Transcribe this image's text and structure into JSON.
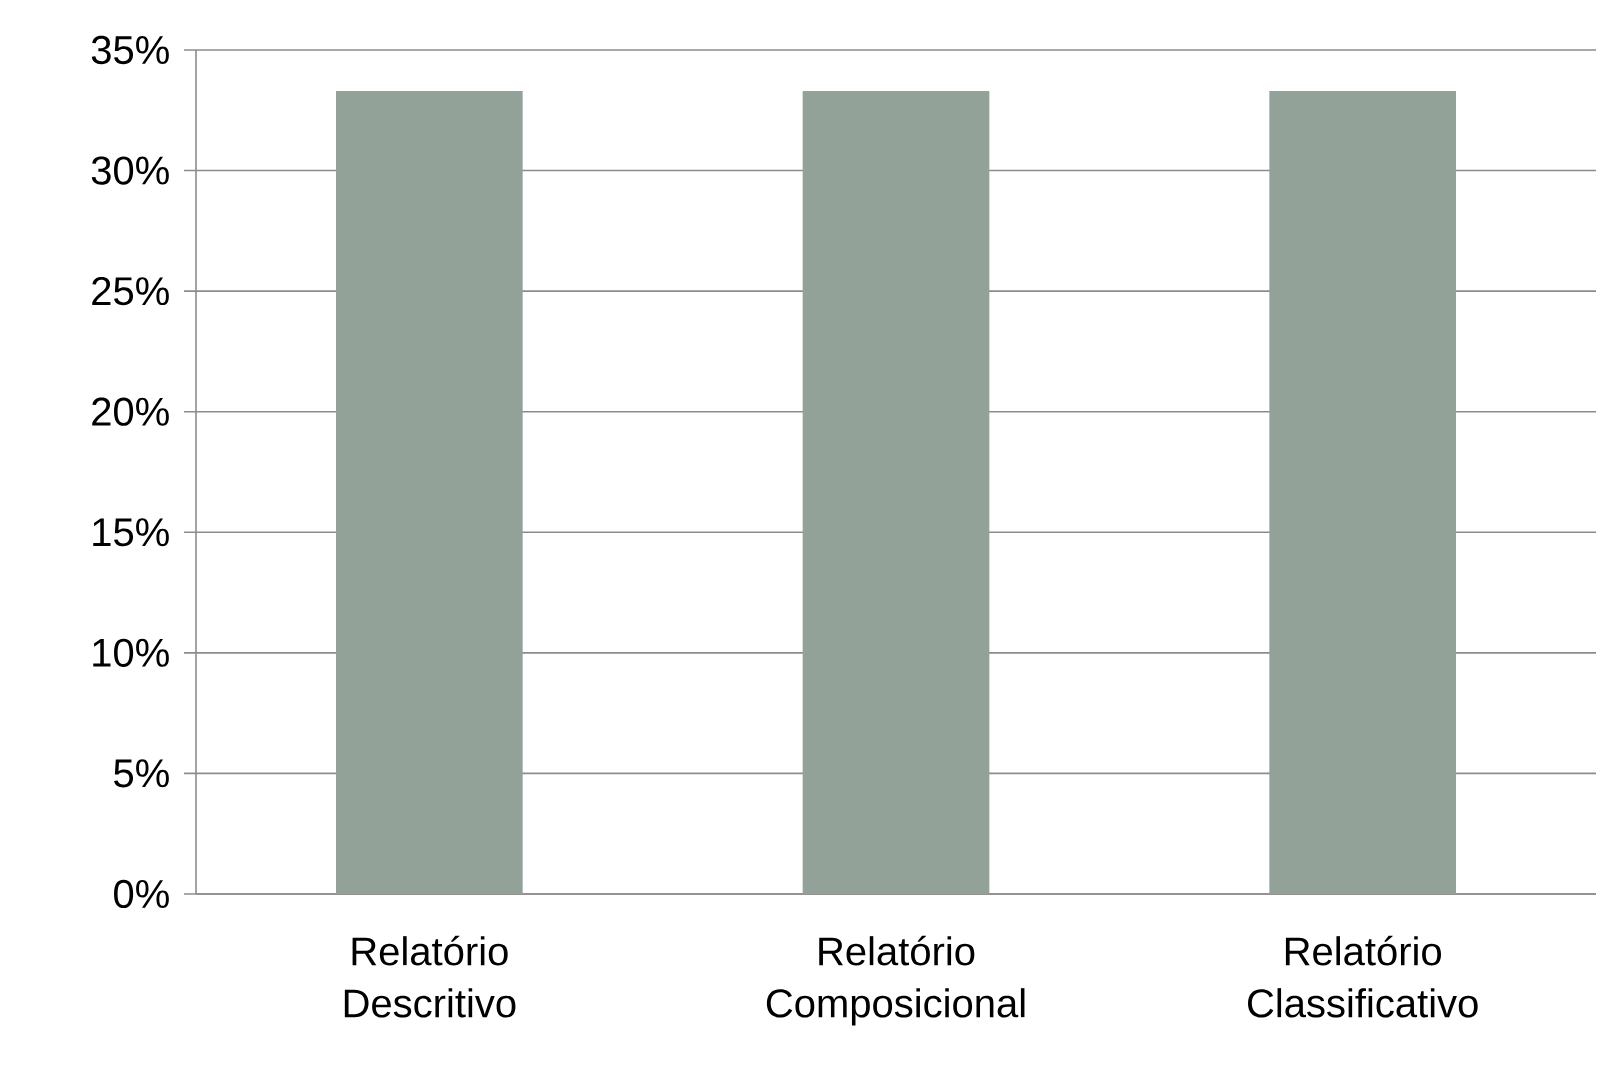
{
  "chart_data": {
    "type": "bar",
    "categories": [
      "Relatório Descritivo",
      "Relatório Composicional",
      "Relatório Classificativo"
    ],
    "values": [
      33.3,
      33.3,
      33.3
    ],
    "color": "#93a299",
    "ylim": [
      0,
      35
    ],
    "yticks": [
      {
        "value": 0,
        "label": "0%"
      },
      {
        "value": 5,
        "label": "5%"
      },
      {
        "value": 10,
        "label": "10%"
      },
      {
        "value": 15,
        "label": "15%"
      },
      {
        "value": 20,
        "label": "20%"
      },
      {
        "value": 25,
        "label": "25%"
      },
      {
        "value": 30,
        "label": "30%"
      },
      {
        "value": 35,
        "label": "35%"
      }
    ],
    "grid": "y"
  }
}
